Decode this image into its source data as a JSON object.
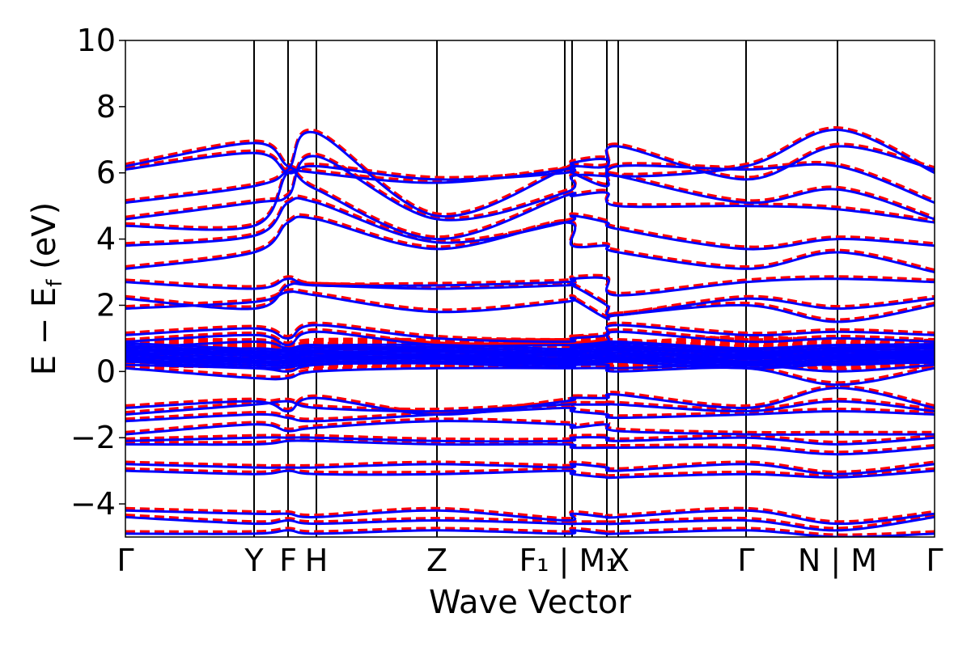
{
  "chart_data": {
    "type": "line",
    "title": "",
    "xlabel": "Wave Vector",
    "ylabel": "E − E_f (eV)",
    "ylabel_parts": {
      "main": "E − E",
      "sub": "f",
      "unit": " (eV)"
    },
    "ylim": [
      -5,
      10
    ],
    "yticks": [
      -4,
      -2,
      0,
      2,
      4,
      6,
      8,
      10
    ],
    "ytick_labels": [
      "−4",
      "−2",
      "0",
      "2",
      "4",
      "6",
      "8",
      "10"
    ],
    "kpath_labels": [
      "Γ",
      "Y",
      "F",
      "H",
      "Z",
      "F1 | M1",
      "X",
      "Γ",
      "N | M",
      "Γ"
    ],
    "kpoint_positions": [
      0.0,
      0.159,
      0.201,
      0.236,
      0.385,
      0.543,
      0.552,
      0.595,
      0.609,
      0.767,
      0.88,
      1.0
    ],
    "kpoint_labels_display": [
      "Γ",
      "Y",
      "F",
      "H",
      "Z",
      "F₁ | M₁",
      "X",
      "Γ",
      "N | M",
      "Γ"
    ],
    "grid": false,
    "legend": "none",
    "series": [
      {
        "style": "dashed",
        "color": "#ff0000",
        "line_width": 4
      },
      {
        "style": "solid",
        "color": "#0000ff",
        "line_width": 3
      }
    ],
    "bands": {
      "upper": [
        [
          6.2,
          6.9,
          6.2,
          6.0,
          5.7,
          6.1,
          6.3,
          6.4,
          5.9,
          6.2,
          7.3,
          6.0
        ],
        [
          6.1,
          6.6,
          6.0,
          6.2,
          5.8,
          6.0,
          6.2,
          6.2,
          6.8,
          5.8,
          6.8,
          6.1
        ],
        [
          5.1,
          5.6,
          6.1,
          7.2,
          4.7,
          6.1,
          6.0,
          5.6,
          6.2,
          6.1,
          6.2,
          5.1
        ],
        [
          4.6,
          5.1,
          5.3,
          6.5,
          4.6,
          5.4,
          5.9,
          5.9,
          5.9,
          5.1,
          5.5,
          4.6
        ],
        [
          4.4,
          4.4,
          6.0,
          5.5,
          4.0,
          5.3,
          5.3,
          5.4,
          5.0,
          5.0,
          4.9,
          4.5
        ],
        [
          3.8,
          4.1,
          5.1,
          5.1,
          3.9,
          4.5,
          4.7,
          4.5,
          4.3,
          3.7,
          4.0,
          3.8
        ],
        [
          3.1,
          3.6,
          4.5,
          4.6,
          3.7,
          4.5,
          3.8,
          3.8,
          3.6,
          3.1,
          3.6,
          3.0
        ],
        [
          2.7,
          2.5,
          2.8,
          2.6,
          2.6,
          2.7,
          2.8,
          2.8,
          2.3,
          2.7,
          2.8,
          2.7
        ],
        [
          2.2,
          1.9,
          2.6,
          2.6,
          2.5,
          2.6,
          2.6,
          2.0,
          1.7,
          2.2,
          1.9,
          2.2
        ],
        [
          1.9,
          2.1,
          2.4,
          2.3,
          1.8,
          2.1,
          2.2,
          1.6,
          1.7,
          2.0,
          1.5,
          2.0
        ]
      ],
      "middle": [
        [
          1.1,
          1.3,
          1.0,
          1.4,
          1.0,
          0.9,
          1.0,
          1.1,
          1.4,
          1.1,
          1.2,
          1.1
        ],
        [
          0.9,
          1.1,
          0.8,
          1.2,
          0.8,
          0.8,
          0.8,
          0.9,
          1.2,
          0.9,
          1.0,
          0.9
        ],
        [
          0.7,
          0.9,
          0.7,
          0.8,
          0.6,
          0.6,
          0.7,
          0.8,
          0.9,
          0.7,
          0.8,
          0.7
        ],
        [
          0.6,
          0.7,
          0.6,
          0.6,
          0.5,
          0.5,
          0.6,
          0.6,
          0.7,
          0.6,
          0.6,
          0.6
        ],
        [
          0.5,
          0.6,
          0.5,
          0.5,
          0.4,
          0.4,
          0.5,
          0.5,
          0.5,
          0.5,
          0.5,
          0.5
        ],
        [
          0.4,
          0.4,
          0.4,
          0.4,
          0.4,
          0.3,
          0.4,
          0.4,
          0.4,
          0.4,
          0.4,
          0.4
        ],
        [
          0.3,
          0.3,
          0.3,
          0.3,
          0.3,
          0.3,
          0.3,
          0.3,
          0.3,
          0.3,
          0.2,
          0.3
        ],
        [
          0.2,
          0.1,
          0.0,
          0.2,
          0.3,
          0.2,
          0.2,
          0.2,
          0.1,
          0.2,
          0.0,
          0.2
        ],
        [
          0.1,
          -0.2,
          -0.2,
          0.0,
          0.1,
          0.1,
          0.1,
          0.1,
          0.0,
          0.1,
          -0.4,
          0.1
        ]
      ],
      "lower": [
        [
          -1.1,
          -0.9,
          -1.2,
          -0.8,
          -1.3,
          -0.9,
          -0.8,
          -0.8,
          -0.7,
          -1.1,
          -0.5,
          -1.1
        ],
        [
          -1.3,
          -1.0,
          -0.9,
          -1.1,
          -1.2,
          -1.0,
          -1.0,
          -1.0,
          -1.0,
          -1.2,
          -0.9,
          -1.2
        ],
        [
          -1.5,
          -1.3,
          -1.4,
          -1.5,
          -1.3,
          -1.1,
          -1.2,
          -1.3,
          -1.4,
          -1.3,
          -1.2,
          -1.3
        ],
        [
          -1.9,
          -1.6,
          -1.8,
          -1.7,
          -1.5,
          -1.6,
          -1.7,
          -1.6,
          -1.8,
          -1.9,
          -1.9,
          -1.9
        ],
        [
          -2.1,
          -2.0,
          -2.0,
          -2.0,
          -2.1,
          -2.1,
          -2.0,
          -2.0,
          -2.1,
          -2.0,
          -2.2,
          -2.0
        ],
        [
          -2.2,
          -2.2,
          -2.1,
          -2.1,
          -2.2,
          -2.2,
          -2.3,
          -2.3,
          -2.3,
          -2.3,
          -2.5,
          -2.3
        ],
        [
          -2.8,
          -2.9,
          -2.9,
          -2.9,
          -2.8,
          -2.9,
          -2.8,
          -2.9,
          -3.0,
          -2.8,
          -3.1,
          -2.8
        ],
        [
          -3.0,
          -3.1,
          -3.0,
          -3.1,
          -3.1,
          -3.0,
          -3.1,
          -3.2,
          -3.2,
          -3.1,
          -3.2,
          -3.0
        ],
        [
          -4.2,
          -4.3,
          -4.3,
          -4.4,
          -4.2,
          -4.5,
          -4.3,
          -4.4,
          -4.4,
          -4.2,
          -4.6,
          -4.3
        ],
        [
          -4.4,
          -4.6,
          -4.5,
          -4.6,
          -4.5,
          -4.6,
          -4.6,
          -4.6,
          -4.6,
          -4.5,
          -4.8,
          -4.4
        ],
        [
          -4.9,
          -4.9,
          -4.8,
          -4.9,
          -4.8,
          -4.9,
          -4.8,
          -4.9,
          -4.9,
          -4.8,
          -5.0,
          -4.9
        ]
      ]
    }
  }
}
